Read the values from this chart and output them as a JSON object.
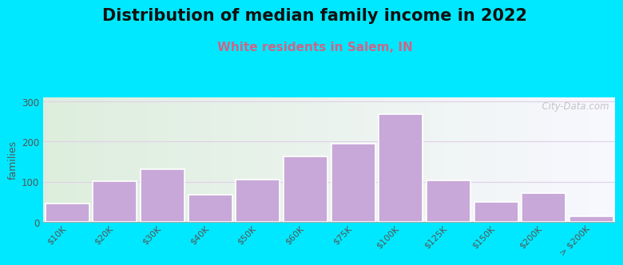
{
  "title": "Distribution of median family income in 2022",
  "subtitle": "White residents in Salem, IN",
  "categories": [
    "$10K",
    "$20K",
    "$30K",
    "$40K",
    "$50K",
    "$60K",
    "$75K",
    "$100K",
    "$125K",
    "$150K",
    "$200K",
    "> $200K"
  ],
  "values": [
    45,
    102,
    132,
    68,
    105,
    163,
    195,
    268,
    103,
    50,
    72,
    15
  ],
  "bar_color": "#c8a8d8",
  "bar_edge_color": "#ffffff",
  "ylabel": "families",
  "ylim": [
    0,
    310
  ],
  "yticks": [
    0,
    100,
    200,
    300
  ],
  "background_outer": "#00e8ff",
  "title_fontsize": 15,
  "subtitle_fontsize": 11,
  "subtitle_color": "#cc6688",
  "grid_color": "#e0d0e8",
  "watermark": "  City-Data.com"
}
